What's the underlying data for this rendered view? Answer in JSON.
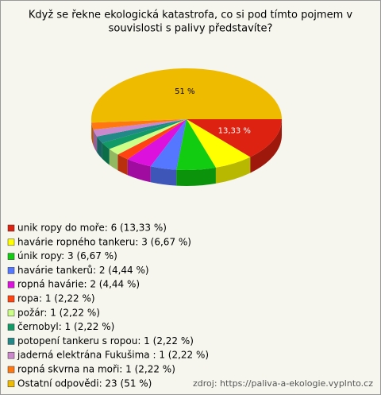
{
  "chart_data": {
    "type": "pie",
    "title_lines": [
      "Když se řekne ekologická katastrofa, co si pod tímto pojmem v",
      "souvislosti s palivy představíte?"
    ],
    "categories": [
      "unik ropy do moře: 6 (13,33 %)",
      "havárie ropného tankeru: 3 (6,67 %)",
      "únik ropy: 3 (6,67 %)",
      "havárie tankerů: 2 (4,44 %)",
      "ropná havárie: 2 (4,44 %)",
      "ropa: 1 (2,22 %)",
      "požár: 1 (2,22 %)",
      "černobyl: 1 (2,22 %)",
      "potopení tankeru s ropou: 1 (2,22 %)",
      "jaderná elektrána Fukušima : 1 (2,22 %)",
      "ropná skvrna na moři: 1 (2,22 %)",
      "Ostatní odpovědi: 23 (51 %)"
    ],
    "values": [
      13.33,
      6.67,
      6.67,
      4.44,
      4.44,
      2.22,
      2.22,
      2.22,
      2.22,
      2.22,
      2.22,
      51
    ],
    "value_labels": [
      "13,33 %",
      null,
      null,
      null,
      null,
      null,
      null,
      null,
      null,
      null,
      null,
      "51 %"
    ],
    "colors": [
      "#dd2211",
      "#ffff00",
      "#11cc11",
      "#5577ff",
      "#dd11dd",
      "#ff4411",
      "#ccff88",
      "#119966",
      "#228888",
      "#cc88cc",
      "#ff7711",
      "#eebb00"
    ],
    "source": "zdroj: https://paliva-a-ekologie.vyplnto.cz"
  }
}
